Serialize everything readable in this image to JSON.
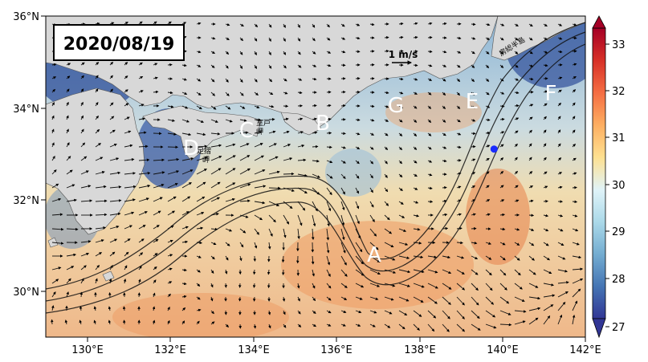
{
  "map": {
    "date_label": "2020/08/19",
    "scale_label": "1 m/s",
    "lat_ticks": [
      "36°N",
      "34°N",
      "32°N",
      "30°N"
    ],
    "lon_ticks": [
      "130°E",
      "132°E",
      "134°E",
      "136°E",
      "138°E",
      "140°E",
      "142°E"
    ],
    "place_labels": [
      "室戸",
      "岬",
      "足摺",
      "岬",
      "房総半島"
    ],
    "region_labels": [
      "A",
      "B",
      "C",
      "D",
      "E",
      "F",
      "G"
    ],
    "lon_range": [
      129,
      142
    ],
    "lat_range": [
      29,
      36
    ],
    "marker_point": {
      "lon": 139.8,
      "lat": 33.1
    },
    "colors": {
      "land": "#d8d8d8",
      "marker": "#1a2cff",
      "region_label": "#ffffff"
    }
  },
  "colorbar": {
    "tick_labels": [
      "33",
      "32",
      "31",
      "30",
      "29",
      "28",
      "27"
    ],
    "range": [
      27,
      33
    ],
    "colormap": "RdYlBu_r",
    "stops": [
      "#313695",
      "#4575b4",
      "#74add1",
      "#abd9e9",
      "#e0f3f8",
      "#fee090",
      "#fdae61",
      "#f46d43",
      "#d73027",
      "#a50026"
    ]
  }
}
